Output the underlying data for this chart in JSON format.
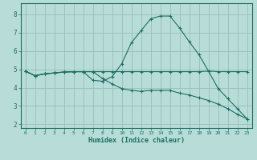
{
  "xlabel": "Humidex (Indice chaleur)",
  "xlim": [
    -0.5,
    23.5
  ],
  "ylim": [
    1.8,
    8.6
  ],
  "yticks": [
    2,
    3,
    4,
    5,
    6,
    7,
    8
  ],
  "xticks": [
    0,
    1,
    2,
    3,
    4,
    5,
    6,
    7,
    8,
    9,
    10,
    11,
    12,
    13,
    14,
    15,
    16,
    17,
    18,
    19,
    20,
    21,
    22,
    23
  ],
  "bg_color": "#b8ddd8",
  "grid_color": "#9abfbb",
  "line_color": "#1a6e62",
  "line1_x": [
    0,
    1,
    2,
    3,
    4,
    5,
    6,
    7,
    8,
    9,
    10,
    11,
    12,
    13,
    14,
    15,
    16,
    17,
    18,
    19,
    20,
    21,
    22,
    23
  ],
  "line1_y": [
    4.9,
    4.65,
    4.75,
    4.8,
    4.85,
    4.87,
    4.87,
    4.87,
    4.87,
    4.87,
    4.87,
    4.87,
    4.87,
    4.87,
    4.87,
    4.87,
    4.87,
    4.87,
    4.87,
    4.9,
    4.87,
    4.87,
    4.87,
    4.87
  ],
  "line2_x": [
    0,
    1,
    2,
    3,
    4,
    5,
    6,
    7,
    8,
    9,
    10,
    11,
    12,
    13,
    14,
    15,
    16,
    17,
    18,
    19,
    20,
    21,
    22,
    23
  ],
  "line2_y": [
    4.9,
    4.65,
    4.75,
    4.8,
    4.85,
    4.87,
    4.87,
    4.4,
    4.35,
    4.6,
    5.3,
    6.45,
    7.1,
    7.75,
    7.9,
    7.9,
    7.25,
    6.5,
    5.8,
    4.9,
    3.95,
    3.4,
    2.85,
    2.3
  ],
  "line3_x": [
    0,
    1,
    2,
    3,
    4,
    5,
    6,
    7,
    8,
    9,
    10,
    11,
    12,
    13,
    14,
    15,
    16,
    17,
    18,
    19,
    20,
    21,
    22,
    23
  ],
  "line3_y": [
    4.9,
    4.65,
    4.75,
    4.8,
    4.85,
    4.87,
    4.87,
    4.87,
    4.5,
    4.2,
    3.95,
    3.85,
    3.8,
    3.85,
    3.85,
    3.85,
    3.7,
    3.6,
    3.45,
    3.3,
    3.1,
    2.85,
    2.55,
    2.3
  ]
}
